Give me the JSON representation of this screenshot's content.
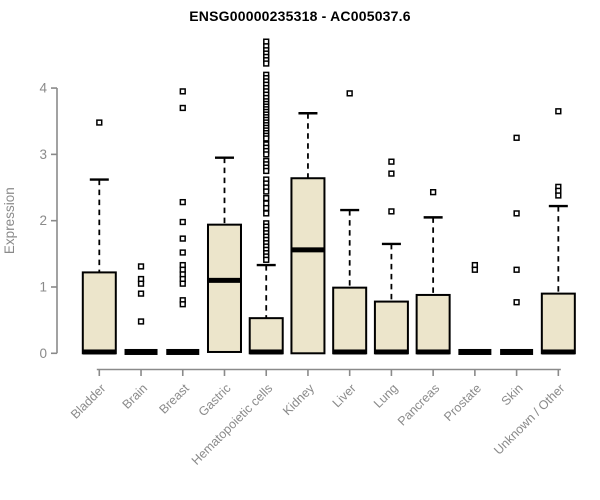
{
  "window": {
    "title": "ENSG00000235318 - AC005037.6"
  },
  "chart_data": {
    "type": "boxplot",
    "title": "ENSG00000235318 - AC005037.6",
    "xlabel": "",
    "ylabel": "Expression",
    "ylim": [
      0,
      4.75
    ],
    "yticks": [
      0,
      1,
      2,
      3,
      4
    ],
    "grid": false,
    "legend": "none",
    "categories": [
      "Bladder",
      "Brain",
      "Breast",
      "Gastric",
      "Hematopoietic cells",
      "Kidney",
      "Liver",
      "Lung",
      "Pancreas",
      "Prostate",
      "Skin",
      "Unknown / Other"
    ],
    "boxes": [
      {
        "label": "Bladder",
        "q1": 0,
        "median": 0.02,
        "q3": 1.22,
        "whisker_low": 0,
        "whisker_high": 2.62,
        "outliers": [
          3.48
        ]
      },
      {
        "label": "Brain",
        "q1": 0,
        "median": 0.02,
        "q3": 0.02,
        "whisker_low": 0,
        "whisker_high": 0.02,
        "outliers": [
          1.31,
          1.12,
          1.05,
          0.9,
          0.48
        ]
      },
      {
        "label": "Breast",
        "q1": 0,
        "median": 0.02,
        "q3": 0.02,
        "whisker_low": 0,
        "whisker_high": 0.02,
        "outliers": [
          3.95,
          3.7,
          2.28,
          1.98,
          1.73,
          1.52,
          1.33,
          1.26,
          1.19,
          1.12,
          1.05,
          0.8,
          0.74
        ]
      },
      {
        "label": "Gastric",
        "q1": 0.02,
        "median": 1.1,
        "q3": 1.94,
        "whisker_low": 0.02,
        "whisker_high": 2.95,
        "outliers": []
      },
      {
        "label": "Hematopoietic cells",
        "q1": 0,
        "median": 0.02,
        "q3": 0.53,
        "whisker_low": 0,
        "whisker_high": 1.33,
        "outliers": [
          4.7,
          4.63,
          4.57,
          4.52,
          4.47,
          4.42,
          4.37,
          4.2,
          4.15,
          4.1,
          4.05,
          4.0,
          3.95,
          3.9,
          3.85,
          3.8,
          3.76,
          3.72,
          3.68,
          3.64,
          3.6,
          3.56,
          3.52,
          3.48,
          3.44,
          3.4,
          3.36,
          3.32,
          3.28,
          3.24,
          3.15,
          3.1,
          3.05,
          3.0,
          2.9,
          2.85,
          2.8,
          2.75,
          2.62,
          2.56,
          2.5,
          2.44,
          2.34,
          2.26,
          2.19,
          2.11,
          1.96,
          1.91,
          1.86,
          1.81,
          1.76,
          1.71,
          1.66,
          1.61,
          1.56,
          1.51,
          1.46,
          1.41
        ]
      },
      {
        "label": "Kidney",
        "q1": 0,
        "median": 1.56,
        "q3": 2.64,
        "whisker_low": 0,
        "whisker_high": 3.62,
        "outliers": []
      },
      {
        "label": "Liver",
        "q1": 0,
        "median": 0.02,
        "q3": 0.99,
        "whisker_low": 0,
        "whisker_high": 2.16,
        "outliers": [
          3.92
        ]
      },
      {
        "label": "Lung",
        "q1": 0,
        "median": 0.02,
        "q3": 0.78,
        "whisker_low": 0,
        "whisker_high": 1.65,
        "outliers": [
          2.89,
          2.71,
          2.14
        ]
      },
      {
        "label": "Pancreas",
        "q1": 0,
        "median": 0.02,
        "q3": 0.88,
        "whisker_low": 0,
        "whisker_high": 2.05,
        "outliers": [
          2.43
        ]
      },
      {
        "label": "Prostate",
        "q1": 0,
        "median": 0.02,
        "q3": 0.02,
        "whisker_low": 0,
        "whisker_high": 0.02,
        "outliers": [
          1.33,
          1.26
        ]
      },
      {
        "label": "Skin",
        "q1": 0,
        "median": 0.02,
        "q3": 0.02,
        "whisker_low": 0,
        "whisker_high": 0.02,
        "outliers": [
          3.25,
          2.11,
          1.26,
          0.77
        ]
      },
      {
        "label": "Unknown / Other",
        "q1": 0,
        "median": 0.02,
        "q3": 0.9,
        "whisker_low": 0,
        "whisker_high": 2.22,
        "outliers": [
          3.65,
          2.51,
          2.45,
          2.38
        ]
      }
    ],
    "colors": {
      "box_fill": "#ECE5CB",
      "box_stroke": "#000000",
      "median": "#000000",
      "whisker": "#000000",
      "outlier_stroke": "#000000",
      "outlier_fill": "#FFFFFF",
      "axis": "#8A8A8A",
      "axis_text": "#8A8A8A",
      "title_text": "#000000",
      "background": "#FFFFFF"
    }
  }
}
